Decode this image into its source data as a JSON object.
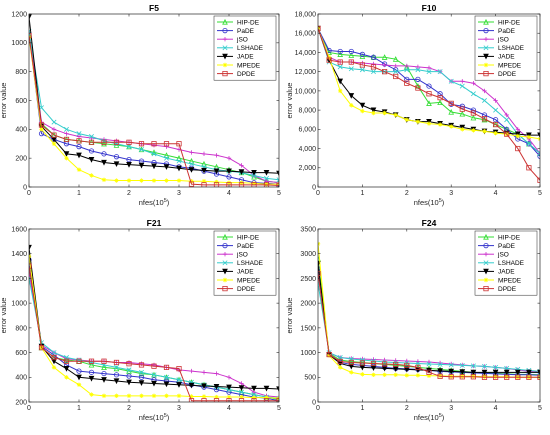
{
  "chart_data": [
    {
      "type": "line",
      "title": "F5",
      "xlabel": "nfes(10",
      "xlabel_exp": "5",
      "xlabel_close": ")",
      "ylabel": "error value",
      "xlim": [
        0,
        5
      ],
      "ylim": [
        0,
        1200
      ],
      "xticks": [
        "0",
        "1",
        "2",
        "3",
        "4",
        "5"
      ],
      "yticks": [
        "0",
        "200",
        "400",
        "600",
        "800",
        "1000",
        "1200"
      ],
      "legend": "top-right",
      "x": [
        0,
        0.25,
        0.5,
        0.75,
        1,
        1.25,
        1.5,
        1.75,
        2,
        2.25,
        2.5,
        2.75,
        3,
        3.25,
        3.5,
        3.75,
        4,
        4.25,
        4.5,
        4.75,
        5
      ],
      "series": [
        {
          "name": "HIP-DE",
          "values": [
            1050,
            440,
            360,
            330,
            320,
            310,
            300,
            290,
            280,
            260,
            240,
            220,
            200,
            180,
            160,
            140,
            120,
            100,
            70,
            40,
            30
          ]
        },
        {
          "name": "PaDE",
          "values": [
            1060,
            370,
            330,
            300,
            280,
            250,
            230,
            210,
            190,
            180,
            170,
            160,
            140,
            130,
            110,
            90,
            70,
            50,
            30,
            25,
            20
          ]
        },
        {
          "name": "jSO",
          "values": [
            1070,
            450,
            400,
            370,
            350,
            340,
            330,
            320,
            310,
            300,
            290,
            280,
            260,
            240,
            230,
            220,
            200,
            150,
            80,
            40,
            30
          ]
        },
        {
          "name": "LSHADE",
          "values": [
            1080,
            550,
            450,
            400,
            370,
            350,
            320,
            300,
            280,
            260,
            230,
            200,
            180,
            160,
            140,
            120,
            110,
            100,
            80,
            60,
            50
          ]
        },
        {
          "name": "JADE",
          "values": [
            1180,
            420,
            330,
            230,
            220,
            190,
            170,
            160,
            155,
            150,
            145,
            140,
            130,
            120,
            115,
            110,
            110,
            105,
            100,
            100,
            95
          ]
        },
        {
          "name": "MPEDE",
          "values": [
            1040,
            400,
            300,
            200,
            120,
            80,
            50,
            45,
            45,
            45,
            45,
            45,
            45,
            40,
            40,
            35,
            30,
            30,
            25,
            20,
            20
          ]
        },
        {
          "name": "DPDE",
          "values": [
            1050,
            430,
            360,
            330,
            320,
            310,
            310,
            310,
            310,
            300,
            300,
            300,
            300,
            20,
            15,
            15,
            15,
            15,
            15,
            15,
            10
          ]
        }
      ]
    },
    {
      "type": "line",
      "title": "F10",
      "xlabel": "nfes(10",
      "xlabel_exp": "5",
      "xlabel_close": ")",
      "ylabel": "error value",
      "xlim": [
        0,
        5
      ],
      "ylim": [
        0,
        18000
      ],
      "xticks": [
        "0",
        "1",
        "2",
        "3",
        "4",
        "5"
      ],
      "yticks": [
        "0",
        "2,000",
        "4,000",
        "6,000",
        "8,000",
        "10,000",
        "12,000",
        "14,000",
        "16,000",
        "18,000"
      ],
      "legend": "top-right",
      "x": [
        0,
        0.25,
        0.5,
        0.75,
        1,
        1.25,
        1.5,
        1.75,
        2,
        2.25,
        2.5,
        2.75,
        3,
        3.25,
        3.5,
        3.75,
        4,
        4.25,
        4.5,
        4.75,
        5
      ],
      "series": [
        {
          "name": "HIP-DE",
          "values": [
            16500,
            14000,
            13800,
            13700,
            13600,
            13500,
            13500,
            13300,
            12500,
            10500,
            8700,
            8800,
            7800,
            7600,
            7200,
            7000,
            6500,
            6000,
            5500,
            4500,
            3500
          ]
        },
        {
          "name": "PaDE",
          "values": [
            16500,
            14200,
            14100,
            14100,
            13800,
            13500,
            12800,
            12200,
            11200,
            11200,
            10500,
            9700,
            8600,
            8400,
            8000,
            7500,
            7000,
            6000,
            5000,
            4500,
            3200
          ]
        },
        {
          "name": "jSO",
          "values": [
            16500,
            13500,
            13000,
            13000,
            12900,
            12800,
            12700,
            12600,
            12600,
            12500,
            12400,
            12000,
            11000,
            11000,
            10800,
            10000,
            9000,
            7500,
            6000,
            5000,
            3500
          ]
        },
        {
          "name": "LSHADE",
          "values": [
            16500,
            13000,
            12500,
            12300,
            12200,
            12000,
            12000,
            12000,
            12200,
            12200,
            12000,
            12000,
            11000,
            10500,
            9700,
            9000,
            8000,
            7000,
            5500,
            4500,
            3500
          ]
        },
        {
          "name": "JADE",
          "values": [
            16500,
            13200,
            11000,
            9500,
            8500,
            8000,
            7800,
            7500,
            7000,
            6800,
            6800,
            6600,
            6400,
            6200,
            6000,
            5800,
            5700,
            5600,
            5500,
            5400,
            5400
          ]
        },
        {
          "name": "MPEDE",
          "values": [
            16500,
            13500,
            10000,
            8500,
            7900,
            7700,
            7700,
            7500,
            7000,
            6800,
            6600,
            6500,
            6300,
            6000,
            5900,
            5800,
            5600,
            5500,
            5300,
            5200,
            5000
          ]
        },
        {
          "name": "DPDE",
          "values": [
            16500,
            13200,
            13000,
            13000,
            12700,
            12500,
            12000,
            11500,
            10800,
            10300,
            9700,
            9300,
            8700,
            8100,
            7700,
            7100,
            6500,
            5500,
            4000,
            2000,
            700
          ]
        }
      ]
    },
    {
      "type": "line",
      "title": "F21",
      "xlabel": "nfes(10",
      "xlabel_exp": "5",
      "xlabel_close": ")",
      "ylabel": "error value",
      "xlim": [
        0,
        5
      ],
      "ylim": [
        200,
        1600
      ],
      "xticks": [
        "0",
        "1",
        "2",
        "3",
        "4",
        "5"
      ],
      "yticks": [
        "200",
        "400",
        "600",
        "800",
        "1000",
        "1200",
        "1400",
        "1600"
      ],
      "legend": "top-right",
      "x": [
        0,
        0.25,
        0.5,
        0.75,
        1,
        1.25,
        1.5,
        1.75,
        2,
        2.25,
        2.5,
        2.75,
        3,
        3.25,
        3.5,
        3.75,
        4,
        4.25,
        4.5,
        4.75,
        5
      ],
      "series": [
        {
          "name": "HIP-DE",
          "values": [
            1300,
            640,
            560,
            540,
            530,
            500,
            480,
            470,
            450,
            430,
            420,
            400,
            380,
            360,
            340,
            320,
            300,
            280,
            260,
            240,
            220
          ]
        },
        {
          "name": "PaDE",
          "values": [
            1350,
            650,
            580,
            500,
            450,
            440,
            430,
            420,
            410,
            400,
            380,
            370,
            360,
            340,
            320,
            300,
            280,
            260,
            240,
            230,
            210
          ]
        },
        {
          "name": "jSO",
          "values": [
            1250,
            660,
            600,
            550,
            540,
            530,
            530,
            520,
            520,
            510,
            500,
            480,
            460,
            450,
            440,
            430,
            400,
            350,
            280,
            250,
            240
          ]
        },
        {
          "name": "LSHADE",
          "values": [
            1200,
            680,
            600,
            560,
            540,
            520,
            500,
            480,
            460,
            440,
            420,
            400,
            380,
            360,
            340,
            320,
            300,
            280,
            260,
            240,
            230
          ]
        },
        {
          "name": "JADE",
          "values": [
            1450,
            650,
            530,
            470,
            400,
            390,
            380,
            370,
            360,
            355,
            350,
            345,
            340,
            335,
            330,
            325,
            320,
            315,
            310,
            310,
            305
          ]
        },
        {
          "name": "MPEDE",
          "values": [
            1380,
            640,
            480,
            400,
            340,
            260,
            250,
            250,
            250,
            250,
            250,
            250,
            250,
            245,
            245,
            240,
            240,
            240,
            235,
            235,
            230
          ]
        },
        {
          "name": "DPDE",
          "values": [
            1300,
            640,
            560,
            530,
            530,
            530,
            530,
            520,
            510,
            500,
            490,
            480,
            470,
            210,
            210,
            210,
            210,
            210,
            210,
            210,
            210
          ]
        }
      ]
    },
    {
      "type": "line",
      "title": "F24",
      "xlabel": "nfes(10",
      "xlabel_exp": "5",
      "xlabel_close": ")",
      "ylabel": "error value",
      "xlim": [
        0,
        5
      ],
      "ylim": [
        0,
        3500
      ],
      "xticks": [
        "0",
        "1",
        "2",
        "3",
        "4",
        "5"
      ],
      "yticks": [
        "0",
        "500",
        "1000",
        "1500",
        "2000",
        "2500",
        "3000",
        "3500"
      ],
      "legend": "top-right",
      "x": [
        0,
        0.25,
        0.5,
        0.75,
        1,
        1.25,
        1.5,
        1.75,
        2,
        2.25,
        2.5,
        2.75,
        3,
        3.25,
        3.5,
        3.75,
        4,
        4.25,
        4.5,
        4.75,
        5
      ],
      "series": [
        {
          "name": "HIP-DE",
          "values": [
            2900,
            980,
            850,
            820,
            800,
            780,
            760,
            740,
            720,
            700,
            680,
            660,
            640,
            620,
            600,
            590,
            580,
            570,
            560,
            560,
            550
          ]
        },
        {
          "name": "PaDE",
          "values": [
            2700,
            970,
            800,
            760,
            740,
            720,
            700,
            680,
            670,
            660,
            640,
            620,
            610,
            600,
            590,
            580,
            570,
            560,
            550,
            550,
            540
          ]
        },
        {
          "name": "jSO",
          "values": [
            2600,
            990,
            900,
            880,
            870,
            860,
            850,
            840,
            830,
            820,
            810,
            790,
            770,
            750,
            730,
            720,
            700,
            680,
            650,
            620,
            600
          ]
        },
        {
          "name": "LSHADE",
          "values": [
            2400,
            1000,
            900,
            870,
            850,
            830,
            810,
            800,
            790,
            780,
            770,
            760,
            750,
            740,
            730,
            720,
            700,
            680,
            660,
            640,
            620
          ]
        },
        {
          "name": "JADE",
          "values": [
            2800,
            960,
            780,
            720,
            700,
            690,
            680,
            670,
            660,
            650,
            640,
            630,
            620,
            610,
            600,
            600,
            600,
            600,
            600,
            600,
            600
          ]
        },
        {
          "name": "MPEDE",
          "values": [
            3200,
            940,
            700,
            600,
            560,
            550,
            550,
            550,
            540,
            540,
            530,
            530,
            520,
            520,
            520,
            510,
            510,
            510,
            500,
            500,
            500
          ]
        },
        {
          "name": "DPDE",
          "values": [
            2600,
            960,
            820,
            800,
            790,
            780,
            770,
            760,
            740,
            700,
            600,
            520,
            510,
            510,
            510,
            500,
            500,
            500,
            500,
            500,
            500
          ]
        }
      ]
    }
  ],
  "series_colors": [
    "#33dd33",
    "#3333cc",
    "#cc33cc",
    "#33cccc",
    "#000000",
    "#ffff00",
    "#cc3333"
  ],
  "series_markers": [
    "triangle-up",
    "circle",
    "plus",
    "x",
    "triangle-down",
    "star",
    "square"
  ]
}
